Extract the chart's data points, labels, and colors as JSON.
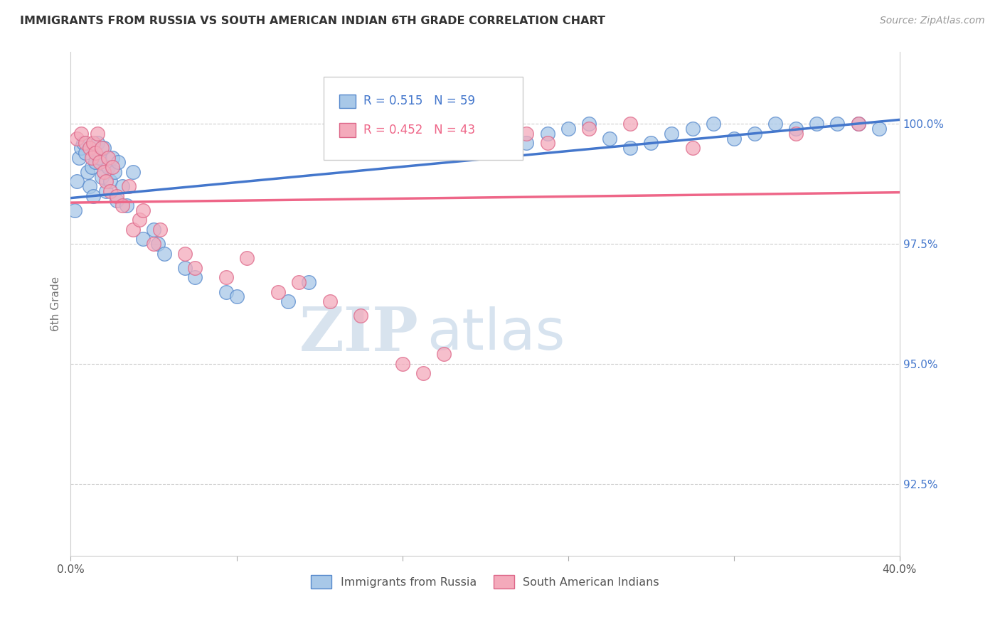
{
  "title": "IMMIGRANTS FROM RUSSIA VS SOUTH AMERICAN INDIAN 6TH GRADE CORRELATION CHART",
  "source": "Source: ZipAtlas.com",
  "ylabel": "6th Grade",
  "yticks": [
    92.5,
    95.0,
    97.5,
    100.0
  ],
  "ytick_labels": [
    "92.5%",
    "95.0%",
    "97.5%",
    "100.0%"
  ],
  "xmin": 0.0,
  "xmax": 40.0,
  "ymin": 91.0,
  "ymax": 101.5,
  "blue_R": 0.515,
  "blue_N": 59,
  "pink_R": 0.452,
  "pink_N": 43,
  "blue_color": "#A8C8E8",
  "pink_color": "#F4AABB",
  "blue_edge_color": "#5588CC",
  "pink_edge_color": "#DD6688",
  "blue_line_color": "#4477CC",
  "pink_line_color": "#EE6688",
  "legend_label_blue": "Immigrants from Russia",
  "legend_label_pink": "South American Indians",
  "watermark_zip": "ZIP",
  "watermark_atlas": "atlas",
  "blue_scatter_x": [
    0.2,
    0.3,
    0.4,
    0.5,
    0.6,
    0.7,
    0.8,
    0.9,
    1.0,
    1.1,
    1.2,
    1.3,
    1.4,
    1.5,
    1.6,
    1.7,
    1.8,
    1.9,
    2.0,
    2.1,
    2.2,
    2.3,
    2.5,
    2.7,
    3.0,
    3.5,
    4.0,
    4.2,
    4.5,
    5.5,
    6.0,
    7.5,
    8.0,
    10.5,
    11.5,
    16.5,
    17.0,
    18.0,
    19.0,
    20.0,
    21.0,
    22.0,
    23.0,
    24.0,
    25.0,
    26.0,
    27.0,
    28.0,
    29.0,
    30.0,
    31.0,
    32.0,
    33.0,
    34.0,
    35.0,
    36.0,
    37.0,
    38.0,
    39.0
  ],
  "blue_scatter_y": [
    98.2,
    98.8,
    99.3,
    99.5,
    99.6,
    99.4,
    99.0,
    98.7,
    99.1,
    98.5,
    99.2,
    99.6,
    99.3,
    98.9,
    99.5,
    98.6,
    99.1,
    98.8,
    99.3,
    99.0,
    98.4,
    99.2,
    98.7,
    98.3,
    99.0,
    97.6,
    97.8,
    97.5,
    97.3,
    97.0,
    96.8,
    96.5,
    96.4,
    96.3,
    96.7,
    99.6,
    99.8,
    99.9,
    99.7,
    99.5,
    99.4,
    99.6,
    99.8,
    99.9,
    100.0,
    99.7,
    99.5,
    99.6,
    99.8,
    99.9,
    100.0,
    99.7,
    99.8,
    100.0,
    99.9,
    100.0,
    100.0,
    100.0,
    99.9
  ],
  "pink_scatter_x": [
    0.3,
    0.5,
    0.7,
    0.9,
    1.0,
    1.1,
    1.2,
    1.3,
    1.4,
    1.5,
    1.6,
    1.7,
    1.8,
    1.9,
    2.0,
    2.2,
    2.5,
    2.8,
    3.0,
    3.3,
    3.5,
    4.0,
    4.3,
    5.5,
    6.0,
    7.5,
    8.5,
    10.0,
    11.0,
    12.5,
    14.0,
    16.0,
    17.0,
    18.0,
    19.0,
    20.0,
    22.0,
    23.0,
    25.0,
    27.0,
    30.0,
    35.0,
    38.0
  ],
  "pink_scatter_y": [
    99.7,
    99.8,
    99.6,
    99.5,
    99.3,
    99.6,
    99.4,
    99.8,
    99.2,
    99.5,
    99.0,
    98.8,
    99.3,
    98.6,
    99.1,
    98.5,
    98.3,
    98.7,
    97.8,
    98.0,
    98.2,
    97.5,
    97.8,
    97.3,
    97.0,
    96.8,
    97.2,
    96.5,
    96.7,
    96.3,
    96.0,
    95.0,
    94.8,
    95.2,
    99.5,
    99.7,
    99.8,
    99.6,
    99.9,
    100.0,
    99.5,
    99.8,
    100.0
  ]
}
